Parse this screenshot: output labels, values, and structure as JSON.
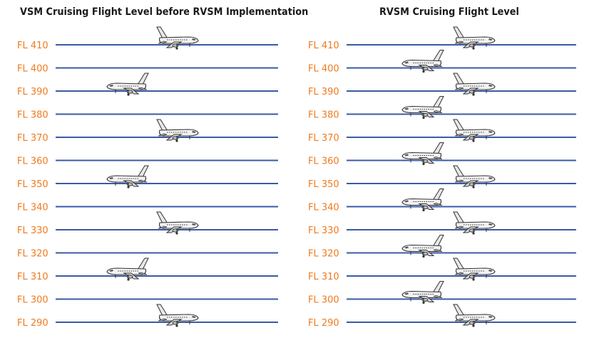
{
  "colors": {
    "line": "#3a5aa6",
    "label": "#f07a1e",
    "title": "#1a1a1a",
    "plane": "#333333"
  },
  "left_panel": {
    "title": "VSM Cruising Flight Level before RVSM Implementation",
    "levels": [
      "FL 410",
      "FL 400",
      "FL 390",
      "FL 380",
      "FL 370",
      "FL 360",
      "FL 350",
      "FL 340",
      "FL 330",
      "FL 320",
      "FL 310",
      "FL 300",
      "FL 290"
    ],
    "aircraft": [
      {
        "level": "FL 410",
        "heading": "east"
      },
      {
        "level": "FL 390",
        "heading": "west"
      },
      {
        "level": "FL 370",
        "heading": "east"
      },
      {
        "level": "FL 350",
        "heading": "west"
      },
      {
        "level": "FL 330",
        "heading": "east"
      },
      {
        "level": "FL 310",
        "heading": "west"
      },
      {
        "level": "FL 290",
        "heading": "east"
      }
    ]
  },
  "right_panel": {
    "title": "RVSM Cruising Flight Level",
    "levels": [
      "FL 410",
      "FL 400",
      "FL 390",
      "FL 380",
      "FL 370",
      "FL 360",
      "FL 350",
      "FL 340",
      "FL 330",
      "FL 320",
      "FL 310",
      "FL 300",
      "FL 290"
    ],
    "aircraft": [
      {
        "level": "FL 410",
        "heading": "east"
      },
      {
        "level": "FL 400",
        "heading": "west"
      },
      {
        "level": "FL 390",
        "heading": "east"
      },
      {
        "level": "FL 380",
        "heading": "west"
      },
      {
        "level": "FL 370",
        "heading": "east"
      },
      {
        "level": "FL 360",
        "heading": "west"
      },
      {
        "level": "FL 350",
        "heading": "east"
      },
      {
        "level": "FL 340",
        "heading": "west"
      },
      {
        "level": "FL 330",
        "heading": "east"
      },
      {
        "level": "FL 320",
        "heading": "west"
      },
      {
        "level": "FL 310",
        "heading": "east"
      },
      {
        "level": "FL 300",
        "heading": "west"
      },
      {
        "level": "FL 290",
        "heading": "east"
      }
    ]
  }
}
